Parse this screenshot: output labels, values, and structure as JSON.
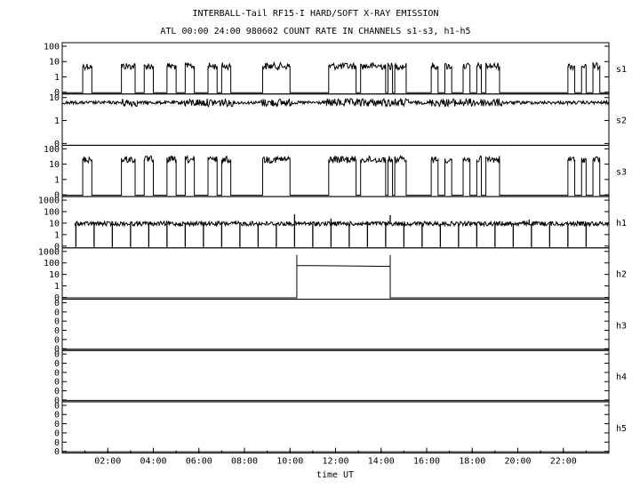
{
  "chart_data": {
    "type": "line",
    "title": "INTERBALL-Tail RF15-I HARD/SOFT X-RAY EMISSION",
    "subtitle": "ATL 00:00 24:00 980602  COUNT RATE IN CHANNELS s1-s3, h1-h5",
    "xlabel": "time UT",
    "x_range_hours": [
      0,
      24
    ],
    "x_ticks": [
      "02:00",
      "04:00",
      "06:00",
      "08:00",
      "10:00",
      "12:00",
      "14:00",
      "16:00",
      "18:00",
      "20:00",
      "22:00"
    ],
    "y_scale": "log",
    "grid": false,
    "channels": [
      {
        "name": "s1",
        "y_ticks": [
          "100",
          "10",
          "1",
          "0"
        ],
        "baseline": 0,
        "high_level": 5,
        "segments": [
          [
            0.9,
            1.3
          ],
          [
            2.6,
            3.2
          ],
          [
            3.6,
            4.0
          ],
          [
            4.6,
            5.0
          ],
          [
            5.4,
            5.8
          ],
          [
            6.4,
            6.8
          ],
          [
            7.0,
            7.4
          ],
          [
            8.8,
            10.0
          ],
          [
            11.7,
            12.9
          ],
          [
            13.1,
            14.2
          ],
          [
            14.3,
            14.5
          ],
          [
            14.6,
            15.1
          ],
          [
            16.2,
            16.5
          ],
          [
            16.8,
            17.1
          ],
          [
            17.6,
            17.9
          ],
          [
            18.2,
            18.4
          ],
          [
            18.6,
            19.2
          ],
          [
            22.2,
            22.5
          ],
          [
            22.8,
            23.0
          ],
          [
            23.3,
            23.6
          ]
        ]
      },
      {
        "name": "s2",
        "y_ticks": [
          "10",
          "1",
          "0"
        ],
        "level": 6,
        "noisy_ranges": [
          [
            2.5,
            3.3
          ],
          [
            5.3,
            7.5
          ],
          [
            8.7,
            10.1
          ],
          [
            11.6,
            15.2
          ],
          [
            16.1,
            19.3
          ]
        ]
      },
      {
        "name": "s3",
        "y_ticks": [
          "100",
          "10",
          "1",
          "0"
        ],
        "baseline": 0,
        "high_level": 20,
        "segments": [
          [
            0.9,
            1.3
          ],
          [
            2.6,
            3.2
          ],
          [
            3.6,
            4.0
          ],
          [
            4.6,
            5.0
          ],
          [
            5.4,
            5.8
          ],
          [
            6.4,
            6.8
          ],
          [
            7.0,
            7.4
          ],
          [
            8.8,
            10.0
          ],
          [
            11.7,
            12.9
          ],
          [
            13.1,
            14.2
          ],
          [
            14.3,
            14.5
          ],
          [
            14.6,
            15.1
          ],
          [
            16.2,
            16.5
          ],
          [
            16.8,
            17.1
          ],
          [
            17.6,
            17.9
          ],
          [
            18.2,
            18.4
          ],
          [
            18.6,
            19.2
          ],
          [
            22.2,
            22.5
          ],
          [
            22.8,
            23.0
          ],
          [
            23.3,
            23.6
          ]
        ]
      },
      {
        "name": "h1",
        "y_ticks": [
          "1000",
          "100",
          "10",
          "1",
          "0"
        ],
        "level": 9,
        "dropouts": [
          0.6,
          1.4,
          2.2,
          3.0,
          3.8,
          4.6,
          5.4,
          6.2,
          7.0,
          7.8,
          8.6,
          9.4,
          10.2,
          11.0,
          11.8,
          12.6,
          13.4,
          14.2,
          15.0,
          15.8,
          16.6,
          17.4,
          18.2,
          19.0,
          19.8,
          20.6,
          21.4,
          22.2,
          23.0
        ],
        "spikes": [
          [
            10.2,
            60
          ],
          [
            14.4,
            50
          ],
          [
            11.8,
            25
          ],
          [
            20.5,
            20
          ]
        ]
      },
      {
        "name": "h2",
        "y_ticks": [
          "1000",
          "100",
          "10",
          "1",
          "0"
        ],
        "baseline": 0,
        "plateau": {
          "start": 10.3,
          "end": 14.4,
          "level_start": 60,
          "level_end": 50,
          "peak": 500
        }
      },
      {
        "name": "h3",
        "y_ticks": [
          "0",
          "0",
          "0",
          "0",
          "0",
          "0"
        ],
        "baseline": 0
      },
      {
        "name": "h4",
        "y_ticks": [
          "0",
          "0",
          "0",
          "0",
          "0",
          "0"
        ],
        "baseline": 0
      },
      {
        "name": "h5",
        "y_ticks": [
          "0",
          "0",
          "0",
          "0",
          "0",
          "0"
        ],
        "baseline": 0
      }
    ]
  }
}
